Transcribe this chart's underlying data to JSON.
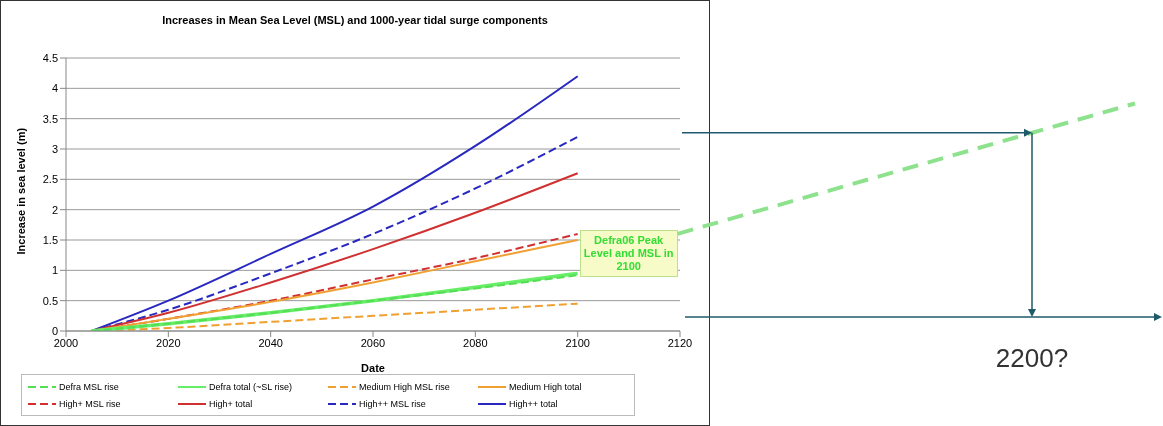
{
  "chart_data": {
    "type": "line",
    "title": "Increases in Mean Sea Level (MSL) and 1000-year tidal surge components",
    "xlabel": "Date",
    "ylabel": "Increase in sea level (m)",
    "x": [
      2005,
      2020,
      2040,
      2060,
      2080,
      2100
    ],
    "series": [
      {
        "name": "Defra MSL rise",
        "color": "#55dd55",
        "line_style": "dashed",
        "values": [
          0,
          0.12,
          0.3,
          0.5,
          0.7,
          0.92
        ]
      },
      {
        "name": "Defra total (~SL rise)",
        "color": "#66ee66",
        "line_style": "solid",
        "values": [
          0,
          0.12,
          0.3,
          0.5,
          0.72,
          0.95
        ]
      },
      {
        "name": "Medium High MSL rise",
        "color": "#f0a030",
        "line_style": "dashed",
        "values": [
          0,
          0.05,
          0.15,
          0.25,
          0.35,
          0.45
        ]
      },
      {
        "name": "Medium High total",
        "color": "#f0a030",
        "line_style": "solid",
        "values": [
          0,
          0.2,
          0.48,
          0.8,
          1.15,
          1.5
        ]
      },
      {
        "name": "High+ MSL rise",
        "color": "#d03030",
        "line_style": "dashed",
        "values": [
          0,
          0.2,
          0.5,
          0.85,
          1.2,
          1.6
        ]
      },
      {
        "name": "High+ total",
        "color": "#d03030",
        "line_style": "solid",
        "values": [
          0,
          0.3,
          0.8,
          1.35,
          1.95,
          2.6
        ]
      },
      {
        "name": "High++ MSL rise",
        "color": "#2828c0",
        "line_style": "dashed",
        "values": [
          0,
          0.35,
          0.95,
          1.6,
          2.35,
          3.2
        ]
      },
      {
        "name": "High++ total",
        "color": "#2828c0",
        "line_style": "solid",
        "values": [
          0,
          0.5,
          1.27,
          2.05,
          3.05,
          4.2
        ]
      }
    ],
    "xlim": [
      2000,
      2120
    ],
    "xticks": [
      2000,
      2020,
      2040,
      2060,
      2080,
      2100,
      2120
    ],
    "ylim": [
      0,
      4.5
    ],
    "yticks": [
      0,
      0.5,
      1,
      1.5,
      2,
      2.5,
      3,
      3.5,
      4,
      4.5
    ],
    "grid": "y",
    "legend": "bottom",
    "marker": "none",
    "annotations": [
      {
        "text": "Defra06 Peak Level and MSL in 2100",
        "x": 2100,
        "y": 0.95
      },
      "2200?"
    ]
  }
}
